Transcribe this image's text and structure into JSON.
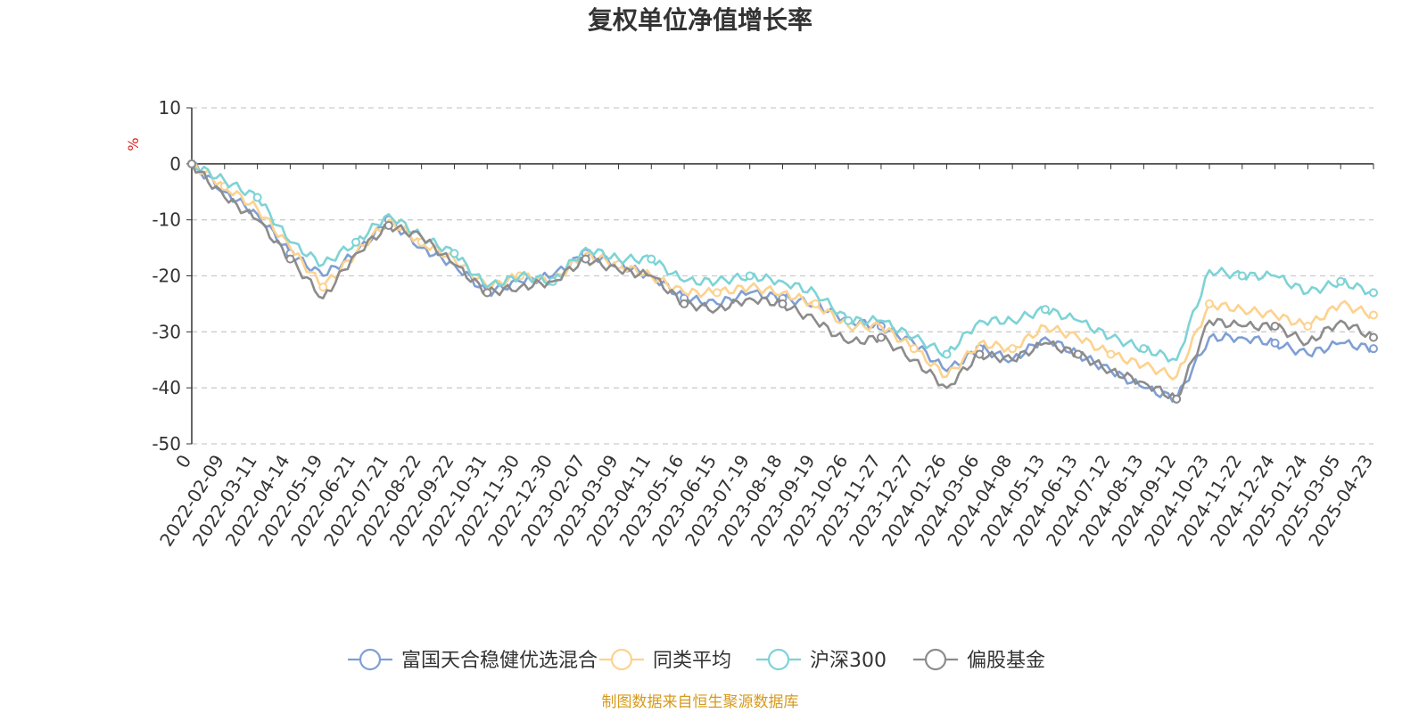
{
  "chart_data": {
    "type": "line",
    "title": "复权单位净值增长率",
    "ylabel": "%",
    "ylim": [
      -50,
      10
    ],
    "yticks": [
      10,
      0,
      -10,
      -20,
      -30,
      -40,
      -50
    ],
    "grid": true,
    "legend_position": "bottom",
    "source_note": "制图数据来自恒生聚源数据库",
    "x": [
      "0",
      "2022-02-09",
      "2022-03-11",
      "2022-04-14",
      "2022-05-19",
      "2022-06-21",
      "2022-07-21",
      "2022-08-22",
      "2022-09-22",
      "2022-10-31",
      "2022-11-30",
      "2022-12-30",
      "2023-02-07",
      "2023-03-09",
      "2023-04-11",
      "2023-05-16",
      "2023-06-15",
      "2023-07-19",
      "2023-08-18",
      "2023-09-19",
      "2023-10-26",
      "2023-11-27",
      "2023-12-27",
      "2024-01-26",
      "2024-03-06",
      "2024-04-08",
      "2024-05-13",
      "2024-06-13",
      "2024-07-12",
      "2024-08-13",
      "2024-09-12",
      "2024-10-23",
      "2024-11-22",
      "2024-12-24",
      "2025-01-24",
      "2025-03-05",
      "2025-04-23"
    ],
    "series": [
      {
        "name": "富国天合稳健优选混合",
        "color": "#7f9fd4",
        "values": [
          0,
          -5,
          -9,
          -16,
          -20,
          -16,
          -10,
          -15,
          -18,
          -23,
          -21,
          -20,
          -16,
          -18,
          -20,
          -24,
          -25,
          -23,
          -24,
          -25,
          -28,
          -29,
          -32,
          -37,
          -33,
          -35,
          -31,
          -34,
          -37,
          -40,
          -42,
          -31,
          -31,
          -32,
          -34,
          -32,
          -33
        ]
      },
      {
        "name": "同类平均",
        "color": "#fdd28e",
        "values": [
          0,
          -4,
          -8,
          -15,
          -22,
          -16,
          -10,
          -14,
          -17,
          -22,
          -20,
          -21,
          -16,
          -18,
          -20,
          -23,
          -23,
          -22,
          -23,
          -25,
          -29,
          -29,
          -33,
          -38,
          -32,
          -33,
          -29,
          -31,
          -34,
          -36,
          -38,
          -25,
          -26,
          -27,
          -29,
          -25,
          -27
        ]
      },
      {
        "name": "沪深300",
        "color": "#7ed3d6",
        "values": [
          0,
          -3,
          -6,
          -14,
          -18,
          -14,
          -9,
          -13,
          -16,
          -22,
          -20,
          -21,
          -15,
          -17,
          -17,
          -21,
          -21,
          -20,
          -21,
          -23,
          -28,
          -28,
          -31,
          -34,
          -28,
          -28,
          -26,
          -28,
          -31,
          -33,
          -35,
          -19,
          -20,
          -20,
          -23,
          -21,
          -23
        ]
      },
      {
        "name": "偏股基金",
        "color": "#8c8c8c",
        "values": [
          0,
          -6,
          -10,
          -17,
          -24,
          -16,
          -11,
          -13,
          -18,
          -23,
          -22,
          -21,
          -17,
          -19,
          -20,
          -25,
          -26,
          -24,
          -25,
          -28,
          -32,
          -31,
          -35,
          -40,
          -34,
          -35,
          -32,
          -34,
          -37,
          -39,
          -42,
          -28,
          -29,
          -29,
          -32,
          -28,
          -31
        ]
      }
    ]
  }
}
